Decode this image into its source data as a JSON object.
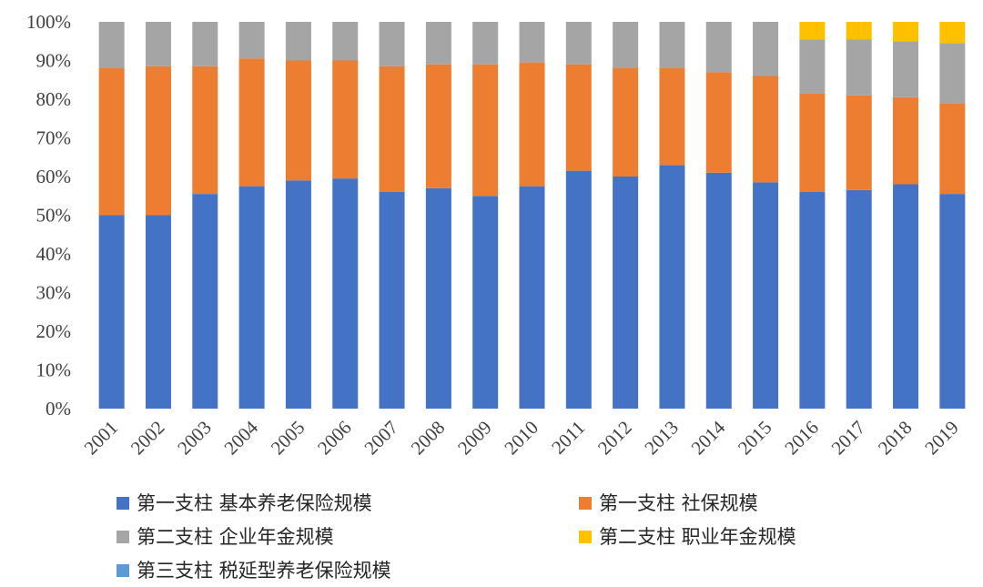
{
  "chart_data": {
    "type": "bar",
    "stacked": true,
    "percent": true,
    "categories": [
      "2001",
      "2002",
      "2003",
      "2004",
      "2005",
      "2006",
      "2007",
      "2008",
      "2009",
      "2010",
      "2011",
      "2012",
      "2013",
      "2014",
      "2015",
      "2016",
      "2017",
      "2018",
      "2019"
    ],
    "y_ticks": [
      "0%",
      "10%",
      "20%",
      "30%",
      "40%",
      "50%",
      "60%",
      "70%",
      "80%",
      "90%",
      "100%"
    ],
    "ylim": [
      0,
      100
    ],
    "grid": false,
    "legend_position": "bottom",
    "series": [
      {
        "name": "第一支柱 基本养老保险规模",
        "color": "#4472C4",
        "values": [
          50,
          50,
          55.5,
          57.5,
          59,
          59.5,
          56,
          57,
          55,
          57.5,
          61.5,
          60,
          63,
          61,
          58.5,
          56,
          56.5,
          58,
          55.5
        ]
      },
      {
        "name": "第一支柱 社保规模",
        "color": "#ED7D31",
        "values": [
          38,
          38.5,
          33,
          33,
          31,
          30.5,
          32.5,
          32,
          34,
          32,
          27.5,
          28,
          25,
          26,
          27.5,
          25.5,
          24.5,
          22.5,
          23.5
        ]
      },
      {
        "name": "第二支柱 企业年金规模",
        "color": "#A5A5A5",
        "values": [
          12,
          11.5,
          11.5,
          9.5,
          10,
          10,
          11.5,
          11,
          11,
          10.5,
          11,
          12,
          12,
          13,
          14,
          14,
          14.5,
          14.5,
          15.5
        ]
      },
      {
        "name": "第二支柱 职业年金规模",
        "color": "#FFC000",
        "values": [
          0,
          0,
          0,
          0,
          0,
          0,
          0,
          0,
          0,
          0,
          0,
          0,
          0,
          0,
          0,
          4.5,
          4.5,
          5,
          5.5
        ]
      },
      {
        "name": "第三支柱 税延型养老保险规模",
        "color": "#5B9BD5",
        "values": [
          0,
          0,
          0,
          0,
          0,
          0,
          0,
          0,
          0,
          0,
          0,
          0,
          0,
          0,
          0,
          0,
          0,
          0,
          0
        ]
      }
    ]
  }
}
